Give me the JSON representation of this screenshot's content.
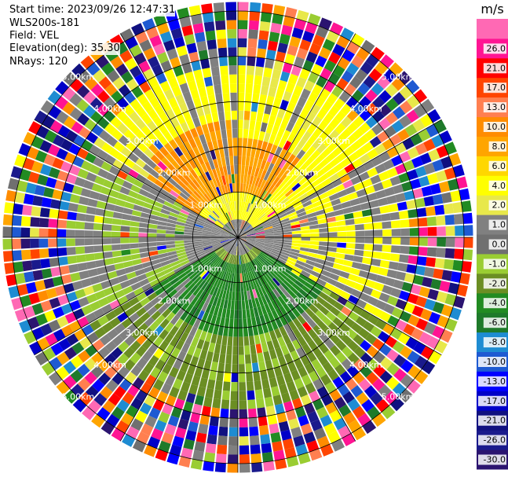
{
  "info": {
    "start_time": "Start time: 2023/09/26 12:47:31",
    "instrument": "WLS200s-181",
    "field": "Field: VEL",
    "elevation": "Elevation(deg): 35.30",
    "nrays": "NRays: 120"
  },
  "chart_data": {
    "type": "ppi-polar",
    "unit": "m/s",
    "n_rays": 120,
    "range_rings_km": [
      1,
      2,
      3,
      4,
      5
    ],
    "ring_labels": [
      "1.00km",
      "2.00km",
      "3.00km",
      "4.00km",
      "5.00km"
    ],
    "max_range_km": 5.2,
    "colorbar": {
      "boundaries": [
        -30.0,
        -26.0,
        -21.0,
        -17.0,
        -13.0,
        -10.0,
        -8.0,
        -6.0,
        -4.0,
        -2.0,
        -1.0,
        0.0,
        1.0,
        2.0,
        4.0,
        6.0,
        8.0,
        10.0,
        13.0,
        17.0,
        21.0,
        26.0
      ],
      "labels": [
        "-30.0",
        "-26.0",
        "-21.0",
        "-17.0",
        "-13.0",
        "-10.0",
        "-8.0",
        "-6.0",
        "-4.0",
        "-2.0",
        "-1.0",
        "0.0",
        "1.0",
        "2.0",
        "4.0",
        "6.0",
        "8.0",
        "10.0",
        "13.0",
        "17.0",
        "21.0",
        "26.0"
      ],
      "colors": [
        "#2b1470",
        "#1a1a8c",
        "#101080",
        "#0000c8",
        "#0000ff",
        "#1e5ad2",
        "#1e8cd2",
        "#1e7a2a",
        "#228b22",
        "#6b8e23",
        "#9acd32",
        "#707070",
        "#808080",
        "#e8e84a",
        "#ffff00",
        "#ffd700",
        "#ffa500",
        "#ff8c00",
        "#ff7f50",
        "#ff4500",
        "#ff0000",
        "#ff1493",
        "#ff69b4"
      ]
    }
  }
}
